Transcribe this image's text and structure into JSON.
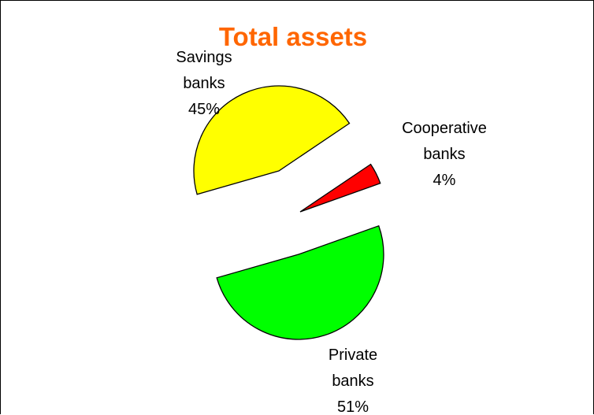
{
  "chart_data": {
    "type": "pie",
    "title": "Total assets",
    "title_color": "#FF6600",
    "exploded": true,
    "legend": "none",
    "slices": [
      {
        "name": "Savings banks",
        "label_lines": [
          "Savings",
          "banks",
          "45%"
        ],
        "value": 45,
        "color": "#FFFF00"
      },
      {
        "name": "Cooperative banks",
        "label_lines": [
          "Cooperative",
          "banks",
          "4%"
        ],
        "value": 4,
        "color": "#FF0000"
      },
      {
        "name": "Private banks",
        "label_lines": [
          "Private",
          "banks",
          "51%"
        ],
        "value": 51,
        "color": "#00FF00"
      }
    ]
  }
}
